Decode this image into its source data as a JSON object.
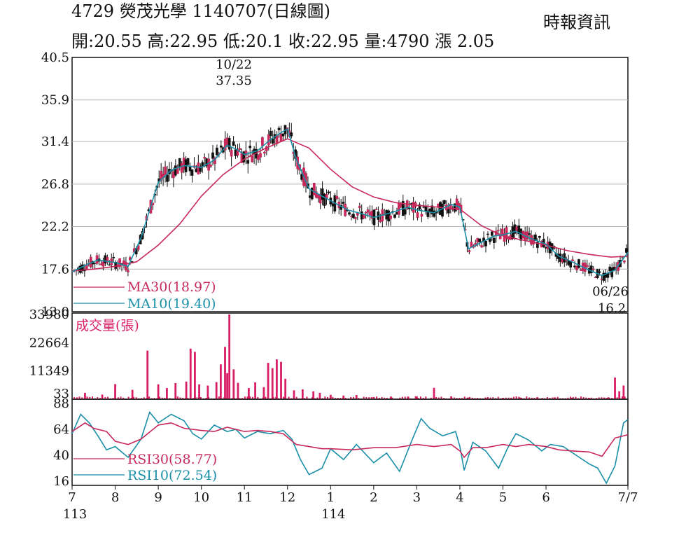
{
  "header": {
    "title": "4729  熒茂光學 1140707(日線圖)",
    "source": "時報資訊",
    "summary": "開:20.55 高:22.95 低:20.1 收:22.95 量:4790 漲 2.05"
  },
  "colors": {
    "ma30": "#c8285a",
    "ma10": "#1a8fa8",
    "volume": "#d81e64",
    "grid": "#b4b4b4",
    "candle": "#c8285a"
  },
  "chart_data": [
    {
      "type": "line",
      "panel": "price",
      "yticks": [
        "40.5",
        "35.9",
        "31.4",
        "26.8",
        "22.2",
        "17.6",
        "13.0"
      ],
      "ylim": [
        13.0,
        40.5
      ],
      "annotations": [
        {
          "date": "10/22",
          "value": "37.35"
        },
        {
          "date": "06/26",
          "value": "16.2"
        }
      ],
      "series": [
        {
          "name": "MA30(18.97)",
          "color": "#c8285a",
          "months": [
            7,
            7.5,
            8,
            8.5,
            9,
            9.5,
            10,
            10.5,
            11,
            11.5,
            12,
            12.5,
            13,
            13.5,
            14,
            14.5,
            15,
            15.5,
            16,
            16.5,
            17,
            17.5,
            18,
            18.5,
            19,
            19.5,
            19.9
          ],
          "values": [
            17.4,
            17.6,
            17.9,
            18.4,
            20.2,
            22.5,
            25.5,
            27.8,
            29.5,
            30.7,
            31.7,
            30.7,
            28.4,
            26.5,
            25.4,
            24.8,
            24.5,
            24.3,
            24.1,
            22.3,
            21.2,
            20.7,
            20.2,
            19.6,
            19.2,
            18.9,
            19.0
          ]
        },
        {
          "name": "MA10(19.40)",
          "color": "#1a8fa8",
          "months": [
            7,
            7.3,
            7.6,
            8,
            8.3,
            8.6,
            9,
            9.3,
            9.6,
            10,
            10.3,
            10.6,
            10.8,
            11,
            11.3,
            11.6,
            12,
            12.2,
            12.5,
            12.8,
            13,
            13.4,
            13.8,
            14,
            14.4,
            14.8,
            15,
            15.4,
            15.8,
            16,
            16.2,
            16.5,
            16.8,
            17,
            17.3,
            17.6,
            18,
            18.3,
            18.6,
            19,
            19.3,
            19.6,
            19.9
          ],
          "values": [
            17.3,
            18.0,
            18.6,
            18.3,
            17.9,
            21.0,
            27.0,
            28.3,
            28.8,
            28.6,
            29.4,
            31.0,
            30.6,
            30.0,
            30.4,
            31.6,
            32.8,
            29.5,
            26.3,
            25.5,
            25.0,
            24.0,
            23.5,
            23.2,
            23.7,
            24.3,
            24.0,
            23.7,
            24.6,
            24.3,
            19.8,
            20.5,
            21.2,
            21.3,
            21.7,
            21.0,
            20.3,
            19.0,
            18.4,
            17.5,
            16.9,
            17.5,
            19.4
          ]
        }
      ]
    },
    {
      "type": "bar",
      "panel": "volume",
      "title": "成交量(張)",
      "yticks": [
        "33980",
        "22664",
        "11349",
        "33"
      ],
      "ylim": [
        33,
        33980
      ],
      "months": [
        7.3,
        7.7,
        8,
        8.4,
        8.75,
        9,
        9.2,
        9.4,
        9.65,
        9.75,
        9.85,
        9.95,
        10.15,
        10.35,
        10.45,
        10.55,
        10.6,
        10.65,
        10.75,
        10.85,
        11.1,
        11.25,
        11.45,
        11.55,
        11.65,
        11.75,
        11.85,
        11.95,
        12.15,
        12.35,
        12.6,
        12.75,
        13.0,
        13.3,
        13.6,
        14.0,
        14.4,
        14.8,
        15.0,
        15.4,
        15.8,
        16.2,
        16.6,
        17.0,
        17.4,
        17.8,
        18.2,
        18.6,
        19.0,
        19.35,
        19.45,
        19.6,
        19.7,
        19.8
      ],
      "values": [
        2600,
        1900,
        6100,
        3800,
        19500,
        6000,
        4500,
        6500,
        7100,
        20300,
        19000,
        6000,
        5500,
        6900,
        14000,
        21000,
        10500,
        34000,
        12000,
        6600,
        4500,
        6800,
        4900,
        14600,
        12500,
        16000,
        15000,
        8200,
        3600,
        4000,
        3200,
        2600,
        1800,
        1500,
        1700,
        900,
        1100,
        1100,
        1200,
        4600,
        1200,
        700,
        700,
        600,
        700,
        800,
        700,
        600,
        500,
        700,
        800,
        8700,
        3200,
        5500
      ]
    },
    {
      "type": "line",
      "panel": "rsi",
      "yticks": [
        "88",
        "64",
        "40",
        "16"
      ],
      "ylim": [
        12,
        92
      ],
      "series": [
        {
          "name": "RSI30(58.77)",
          "color": "#c8285a",
          "months": [
            7,
            7.3,
            7.5,
            7.8,
            8,
            8.3,
            8.6,
            9,
            9.3,
            9.6,
            10,
            10.3,
            10.6,
            10.8,
            11,
            11.3,
            11.6,
            11.9,
            12.2,
            12.5,
            12.8,
            13,
            13.5,
            14,
            14.5,
            15,
            15.4,
            15.8,
            16,
            16.1,
            16.3,
            16.6,
            17,
            17.3,
            17.6,
            18,
            18.3,
            18.6,
            19,
            19.3,
            19.6,
            19.9
          ],
          "values": [
            62,
            70,
            65,
            62,
            53,
            50,
            55,
            68,
            70,
            65,
            63,
            62,
            66,
            64,
            62,
            63,
            62,
            60,
            50,
            48,
            46,
            46,
            45,
            47,
            47,
            50,
            48,
            50,
            44,
            38,
            47,
            47,
            50,
            48,
            50,
            48,
            45,
            44,
            43,
            39,
            56,
            59
          ]
        },
        {
          "name": "RSI10(72.54)",
          "color": "#1a8fa8",
          "months": [
            7,
            7.2,
            7.4,
            7.6,
            7.8,
            8,
            8.3,
            8.6,
            8.8,
            9,
            9.3,
            9.6,
            9.8,
            10,
            10.3,
            10.6,
            10.8,
            11,
            11.3,
            11.6,
            11.9,
            12.1,
            12.3,
            12.5,
            12.8,
            13,
            13.3,
            13.6,
            14,
            14.3,
            14.6,
            14.9,
            15.1,
            15.3,
            15.6,
            15.9,
            16,
            16.1,
            16.3,
            16.6,
            16.9,
            17.1,
            17.3,
            17.6,
            17.9,
            18.1,
            18.4,
            18.7,
            19,
            19.2,
            19.4,
            19.6,
            19.8,
            19.9
          ],
          "values": [
            60,
            78,
            70,
            58,
            45,
            48,
            38,
            55,
            80,
            70,
            78,
            72,
            60,
            55,
            68,
            62,
            64,
            56,
            62,
            60,
            63,
            55,
            36,
            22,
            28,
            46,
            36,
            50,
            33,
            42,
            25,
            55,
            74,
            65,
            58,
            62,
            48,
            26,
            52,
            44,
            28,
            46,
            60,
            54,
            44,
            50,
            48,
            40,
            32,
            28,
            14,
            30,
            70,
            73
          ]
        }
      ]
    }
  ],
  "x_axis": {
    "months": [
      {
        "label": "7",
        "m": 7
      },
      {
        "label": "8",
        "m": 8
      },
      {
        "label": "9",
        "m": 9
      },
      {
        "label": "10",
        "m": 10
      },
      {
        "label": "11",
        "m": 11
      },
      {
        "label": "12",
        "m": 12
      },
      {
        "label": "1",
        "m": 13
      },
      {
        "label": "2",
        "m": 14
      },
      {
        "label": "3",
        "m": 15
      },
      {
        "label": "4",
        "m": 16
      },
      {
        "label": "5",
        "m": 17
      },
      {
        "label": "6",
        "m": 18
      },
      {
        "label": "7/7",
        "m": 19.9
      }
    ],
    "year_labels": [
      {
        "label": "113",
        "m": 7
      },
      {
        "label": "114",
        "m": 13
      }
    ]
  }
}
